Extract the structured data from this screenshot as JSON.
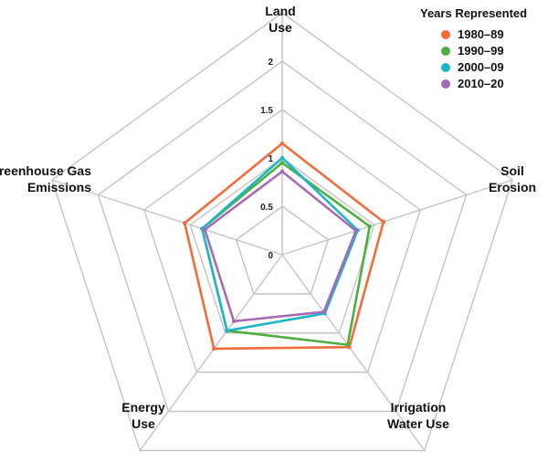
{
  "chart_data": {
    "type": "radar",
    "title": "",
    "axes": [
      "Land Use",
      "Soil Erosion",
      "Irrigation Water Use",
      "Energy Use",
      "Greenhouse Gas Emissions"
    ],
    "axis_labels": [
      [
        "Land",
        "Use"
      ],
      [
        "Soil",
        "Erosion"
      ],
      [
        "Irrigation",
        "Water Use"
      ],
      [
        "Energy",
        "Use"
      ],
      [
        "Greenhouse Gas",
        "Emissions"
      ]
    ],
    "range": [
      0,
      2
    ],
    "ticks": [
      "0",
      "0.5",
      "1",
      "1.5",
      "2"
    ],
    "tick_values": [
      0,
      0.5,
      1,
      1.5,
      2
    ],
    "grid_rings": [
      0.5,
      1,
      1.5,
      2,
      2.5
    ],
    "legend": {
      "title": "Years Represented",
      "position": "top-right"
    },
    "series": [
      {
        "name": "1980–89",
        "color": "#f26b3a",
        "values": [
          1.15,
          1.1,
          1.18,
          1.2,
          1.06
        ]
      },
      {
        "name": "1990–99",
        "color": "#4caf3e",
        "values": [
          0.95,
          0.95,
          1.15,
          0.97,
          0.87
        ]
      },
      {
        "name": "2000–09",
        "color": "#1fb5c6",
        "values": [
          1.0,
          0.82,
          0.75,
          0.97,
          0.87
        ]
      },
      {
        "name": "2010–20",
        "color": "#a86ab5",
        "values": [
          0.86,
          0.8,
          0.73,
          0.85,
          0.84
        ]
      }
    ]
  }
}
